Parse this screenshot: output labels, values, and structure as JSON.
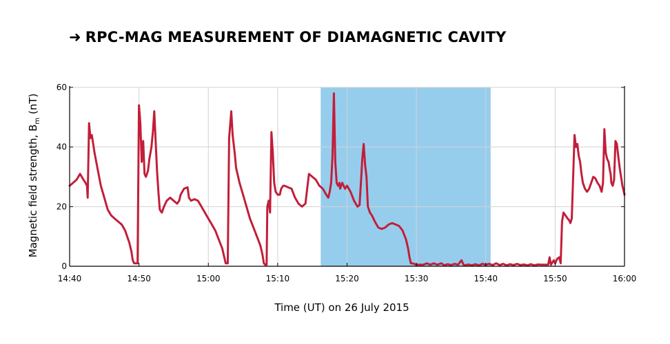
{
  "title": "RPC-MAG MEASUREMENT OF DIAMAGNETIC CAVITY",
  "title_arrow": "➜",
  "colors": {
    "line": "#c21e3a",
    "cavity": "#97cdec",
    "grid": "#d2d2d2",
    "axis": "#000000"
  },
  "chart_data": {
    "type": "line",
    "title": "RPC-MAG MEASUREMENT OF DIAMAGNETIC CAVITY",
    "xlabel": "Time (UT) on 26 July 2015",
    "ylabel_main": "Magnetic field strength, B",
    "ylabel_sub": "m",
    "ylabel_unit": " (nT)",
    "xlim": [
      880,
      960
    ],
    "ylim": [
      0,
      60
    ],
    "x_ticks": [
      880,
      890,
      900,
      910,
      920,
      930,
      940,
      950,
      960
    ],
    "x_tick_labels": [
      "14:40",
      "14:50",
      "15:00",
      "15:10",
      "15:20",
      "15:30",
      "15:40",
      "15:50",
      "16:00"
    ],
    "y_ticks": [
      0,
      20,
      40,
      60
    ],
    "y_tick_labels": [
      "0",
      "20",
      "40",
      "60"
    ],
    "grid": true,
    "highlight_region": {
      "x_start": 916.2,
      "x_end": 940.7
    },
    "series": [
      {
        "points": [
          [
            880,
            27
          ],
          [
            880.5,
            28
          ],
          [
            881,
            29
          ],
          [
            881.5,
            31
          ],
          [
            882,
            29
          ],
          [
            882.3,
            28
          ],
          [
            882.5,
            27
          ],
          [
            882.6,
            23
          ],
          [
            882.8,
            48
          ],
          [
            883,
            43
          ],
          [
            883.2,
            44
          ],
          [
            883.6,
            38
          ],
          [
            884,
            33
          ],
          [
            884.5,
            27
          ],
          [
            885,
            23
          ],
          [
            885.5,
            19
          ],
          [
            886,
            17
          ],
          [
            886.5,
            16
          ],
          [
            887,
            15
          ],
          [
            887.5,
            14
          ],
          [
            888,
            12
          ],
          [
            888.3,
            10
          ],
          [
            888.6,
            8
          ],
          [
            888.9,
            5
          ],
          [
            889.1,
            2
          ],
          [
            889.3,
            1
          ],
          [
            889.6,
            1
          ],
          [
            889.8,
            1
          ],
          [
            890,
            54
          ],
          [
            890.2,
            48
          ],
          [
            890.4,
            35
          ],
          [
            890.6,
            42
          ],
          [
            890.8,
            31
          ],
          [
            891,
            30
          ],
          [
            891.3,
            32
          ],
          [
            891.5,
            36
          ],
          [
            891.8,
            40
          ],
          [
            892,
            45
          ],
          [
            892.2,
            52
          ],
          [
            892.4,
            42
          ],
          [
            892.6,
            32
          ],
          [
            892.8,
            25
          ],
          [
            893,
            19
          ],
          [
            893.3,
            18
          ],
          [
            893.6,
            20
          ],
          [
            894,
            22
          ],
          [
            894.5,
            23
          ],
          [
            895,
            22
          ],
          [
            895.5,
            21
          ],
          [
            895.8,
            22
          ],
          [
            896,
            24
          ],
          [
            896.5,
            26
          ],
          [
            897,
            26.5
          ],
          [
            897.2,
            23
          ],
          [
            897.5,
            22
          ],
          [
            898,
            22.5
          ],
          [
            898.5,
            22
          ],
          [
            899,
            20
          ],
          [
            899.5,
            18
          ],
          [
            900,
            16
          ],
          [
            900.5,
            14
          ],
          [
            901,
            12
          ],
          [
            901.5,
            9
          ],
          [
            902,
            6
          ],
          [
            902.3,
            3
          ],
          [
            902.5,
            1
          ],
          [
            902.8,
            1
          ],
          [
            903,
            43
          ],
          [
            903.3,
            52
          ],
          [
            903.5,
            44
          ],
          [
            903.8,
            38
          ],
          [
            904,
            33
          ],
          [
            904.5,
            28
          ],
          [
            905,
            24
          ],
          [
            905.5,
            20
          ],
          [
            906,
            16
          ],
          [
            906.5,
            13
          ],
          [
            907,
            10
          ],
          [
            907.5,
            7
          ],
          [
            907.8,
            4
          ],
          [
            908,
            1
          ],
          [
            908.2,
            0.5
          ],
          [
            908.4,
            0.5
          ],
          [
            908.5,
            20
          ],
          [
            908.7,
            22
          ],
          [
            908.9,
            18
          ],
          [
            909.1,
            45
          ],
          [
            909.3,
            38
          ],
          [
            909.5,
            28
          ],
          [
            909.7,
            25
          ],
          [
            910,
            24
          ],
          [
            910.3,
            24
          ],
          [
            910.5,
            26
          ],
          [
            910.8,
            27
          ],
          [
            911,
            27
          ],
          [
            911.5,
            26.5
          ],
          [
            912,
            26
          ],
          [
            912.5,
            23
          ],
          [
            913,
            21
          ],
          [
            913.5,
            20
          ],
          [
            914,
            21
          ],
          [
            914.5,
            31
          ],
          [
            915,
            30
          ],
          [
            915.5,
            29
          ],
          [
            916,
            27
          ],
          [
            916.5,
            26
          ],
          [
            917,
            24
          ],
          [
            917.3,
            23
          ],
          [
            917.5,
            25
          ],
          [
            917.7,
            28
          ],
          [
            917.9,
            37
          ],
          [
            918.1,
            58
          ],
          [
            918.3,
            35
          ],
          [
            918.5,
            28
          ],
          [
            918.7,
            27
          ],
          [
            918.9,
            28
          ],
          [
            919,
            26
          ],
          [
            919.3,
            28
          ],
          [
            919.5,
            27
          ],
          [
            919.7,
            26
          ],
          [
            920,
            27
          ],
          [
            920.5,
            25
          ],
          [
            921,
            22
          ],
          [
            921.5,
            20
          ],
          [
            921.8,
            20.5
          ],
          [
            922,
            28
          ],
          [
            922.2,
            36
          ],
          [
            922.4,
            41
          ],
          [
            922.6,
            34
          ],
          [
            922.8,
            30
          ],
          [
            923,
            20
          ],
          [
            923.3,
            18
          ],
          [
            923.6,
            17
          ],
          [
            924,
            15
          ],
          [
            924.5,
            13
          ],
          [
            925,
            12.5
          ],
          [
            925.5,
            13
          ],
          [
            926,
            14
          ],
          [
            926.5,
            14.5
          ],
          [
            927,
            14
          ],
          [
            927.5,
            13.5
          ],
          [
            928,
            12
          ],
          [
            928.5,
            9
          ],
          [
            928.8,
            6
          ],
          [
            929,
            3
          ],
          [
            929.2,
            1
          ],
          [
            929.4,
            1
          ],
          [
            930,
            0.5
          ],
          [
            931,
            0.5
          ],
          [
            931.5,
            1
          ],
          [
            932,
            0.5
          ],
          [
            932.5,
            1
          ],
          [
            933,
            0.5
          ],
          [
            933.6,
            1
          ],
          [
            934,
            0.3
          ],
          [
            934.5,
            0.7
          ],
          [
            935,
            0.4
          ],
          [
            935.5,
            0.8
          ],
          [
            936,
            0.5
          ],
          [
            936.5,
            2
          ],
          [
            936.8,
            0.5
          ],
          [
            937,
            0.3
          ],
          [
            937.5,
            0.6
          ],
          [
            938,
            0.3
          ],
          [
            938.5,
            0.7
          ],
          [
            939,
            0.3
          ],
          [
            939.5,
            0.8
          ],
          [
            940,
            0.5
          ],
          [
            940.5,
            0.8
          ],
          [
            941,
            0.4
          ],
          [
            941.5,
            1
          ],
          [
            942,
            0.4
          ],
          [
            942.5,
            0.8
          ],
          [
            943,
            0.3
          ],
          [
            943.5,
            0.7
          ],
          [
            944,
            0.4
          ],
          [
            944.5,
            0.8
          ],
          [
            945,
            0.4
          ],
          [
            945.5,
            0.6
          ],
          [
            946,
            0.3
          ],
          [
            946.5,
            0.7
          ],
          [
            947,
            0.3
          ],
          [
            947.5,
            0.6
          ],
          [
            948,
            0.5
          ],
          [
            948.5,
            0.5
          ],
          [
            949,
            0.5
          ],
          [
            949.2,
            3
          ],
          [
            949.4,
            0.5
          ],
          [
            949.8,
            2
          ],
          [
            950,
            1
          ],
          [
            950.3,
            2.5
          ],
          [
            950.6,
            3
          ],
          [
            950.8,
            1
          ],
          [
            951,
            15
          ],
          [
            951.2,
            18
          ],
          [
            951.5,
            17
          ],
          [
            951.8,
            16
          ],
          [
            952,
            15.5
          ],
          [
            952.2,
            14.5
          ],
          [
            952.4,
            16
          ],
          [
            952.6,
            30
          ],
          [
            952.8,
            44
          ],
          [
            953,
            40
          ],
          [
            953.2,
            41
          ],
          [
            953.4,
            37
          ],
          [
            953.6,
            35
          ],
          [
            953.8,
            31
          ],
          [
            954,
            28
          ],
          [
            954.3,
            26
          ],
          [
            954.6,
            25
          ],
          [
            954.9,
            26
          ],
          [
            955.2,
            28
          ],
          [
            955.5,
            30
          ],
          [
            955.8,
            29.5
          ],
          [
            956.1,
            28
          ],
          [
            956.4,
            27
          ],
          [
            956.7,
            25
          ],
          [
            956.9,
            28
          ],
          [
            957.1,
            46
          ],
          [
            957.3,
            38
          ],
          [
            957.5,
            36
          ],
          [
            957.7,
            35
          ],
          [
            957.9,
            32
          ],
          [
            958,
            31
          ],
          [
            958.1,
            28
          ],
          [
            958.3,
            27
          ],
          [
            958.5,
            29
          ],
          [
            958.7,
            42
          ],
          [
            958.9,
            41
          ],
          [
            959.1,
            37
          ],
          [
            959.3,
            33
          ],
          [
            959.5,
            30
          ],
          [
            959.7,
            27
          ],
          [
            959.9,
            25
          ],
          [
            960,
            24
          ]
        ]
      }
    ]
  }
}
